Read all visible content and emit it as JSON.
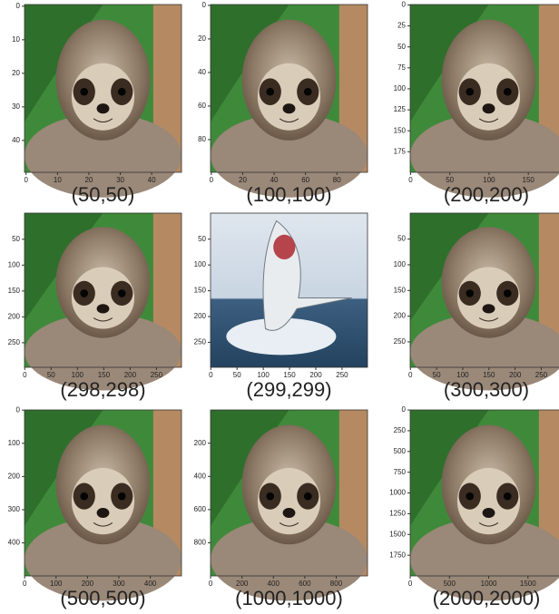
{
  "panels": [
    {
      "caption": "(50,50)",
      "xlim": [
        -0.5,
        49.5
      ],
      "ylim": [
        -0.5,
        49.5
      ],
      "xticks": [
        0,
        10,
        20,
        30,
        40
      ],
      "yticks": [
        0,
        10,
        20,
        30,
        40
      ]
    },
    {
      "caption": "(100,100)",
      "xlim": [
        -0.5,
        99.5
      ],
      "ylim": [
        -0.5,
        99.5
      ],
      "xticks": [
        0,
        20,
        40,
        60,
        80
      ],
      "yticks": [
        0,
        20,
        40,
        60,
        80
      ]
    },
    {
      "caption": "(200,200)",
      "xlim": [
        -0.5,
        199.5
      ],
      "ylim": [
        -0.5,
        199.5
      ],
      "xticks": [
        0,
        50,
        100,
        150
      ],
      "yticks": [
        0,
        25,
        50,
        75,
        100,
        125,
        150,
        175
      ]
    },
    {
      "caption": "(298,298)",
      "xlim": [
        -0.5,
        297.5
      ],
      "ylim": [
        -0.5,
        297.5
      ],
      "xticks": [
        0,
        50,
        100,
        150,
        200,
        250
      ],
      "yticks": [
        50,
        100,
        150,
        200,
        250
      ]
    },
    {
      "caption": "(299,299)",
      "xlim": [
        -0.5,
        298.5
      ],
      "ylim": [
        -0.5,
        298.5
      ],
      "xticks": [
        0,
        50,
        100,
        150,
        200,
        250
      ],
      "yticks": [
        50,
        100,
        150,
        200,
        250
      ]
    },
    {
      "caption": "(300,300)",
      "xlim": [
        -0.5,
        299.5
      ],
      "ylim": [
        -0.5,
        299.5
      ],
      "xticks": [
        0,
        50,
        100,
        150,
        200,
        250
      ],
      "yticks": [
        50,
        100,
        150,
        200,
        250
      ]
    },
    {
      "caption": "(500,500)",
      "xlim": [
        -0.5,
        499.5
      ],
      "ylim": [
        -0.5,
        499.5
      ],
      "xticks": [
        0,
        100,
        200,
        300,
        400
      ],
      "yticks": [
        0,
        100,
        200,
        300,
        400
      ]
    },
    {
      "caption": "(1000,1000)",
      "xlim": [
        -0.5,
        999.5
      ],
      "ylim": [
        -0.5,
        999.5
      ],
      "xticks": [
        0,
        200,
        400,
        600,
        800
      ],
      "yticks": [
        200,
        400,
        600,
        800
      ]
    },
    {
      "caption": "(2000,2000)",
      "xlim": [
        -0.5,
        1999.5
      ],
      "ylim": [
        -0.5,
        1999.5
      ],
      "xticks": [
        0,
        500,
        1000,
        1500
      ],
      "yticks": [
        0,
        250,
        500,
        750,
        1000,
        1250,
        1500,
        1750
      ]
    }
  ]
}
